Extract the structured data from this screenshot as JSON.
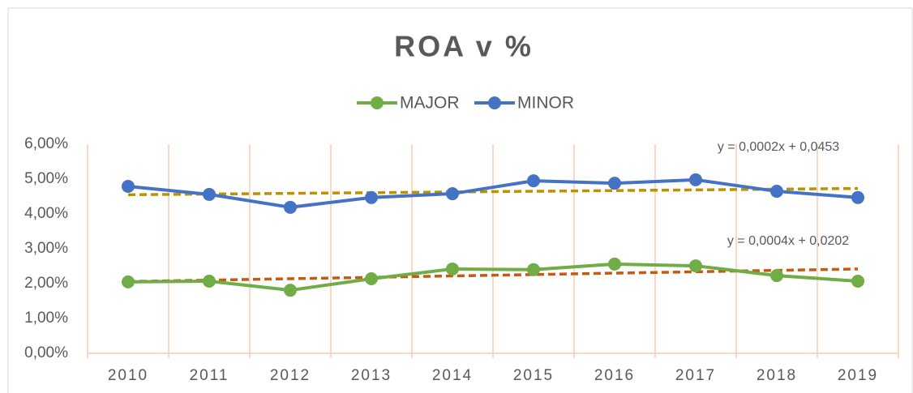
{
  "chart_data": {
    "type": "line",
    "title": "ROA v %",
    "categories": [
      "2010",
      "2011",
      "2012",
      "2013",
      "2014",
      "2015",
      "2016",
      "2017",
      "2018",
      "2019"
    ],
    "series": [
      {
        "name": "MAJOR",
        "color": "#70ad47",
        "values": [
          2.05,
          2.07,
          1.81,
          2.14,
          2.42,
          2.4,
          2.56,
          2.51,
          2.23,
          2.07
        ]
      },
      {
        "name": "MINOR",
        "color": "#4472c4",
        "values": [
          4.79,
          4.56,
          4.19,
          4.47,
          4.58,
          4.95,
          4.88,
          4.98,
          4.65,
          4.47
        ]
      }
    ],
    "trendlines": [
      {
        "equation": "y = 0,0002x + 0,0453",
        "color": "#bf9000",
        "values": [
          4.55,
          4.73
        ]
      },
      {
        "equation": "y = 0,0004x + 0,0202",
        "color": "#c55a11",
        "values": [
          2.06,
          2.42
        ]
      }
    ],
    "ylim": [
      0,
      6
    ],
    "yticks": [
      {
        "value": 0,
        "label": "0,00%"
      },
      {
        "value": 1,
        "label": "1,00%"
      },
      {
        "value": 2,
        "label": "2,00%"
      },
      {
        "value": 3,
        "label": "3,00%"
      },
      {
        "value": 4,
        "label": "4,00%"
      },
      {
        "value": 5,
        "label": "5,00%"
      },
      {
        "value": 6,
        "label": "6,00%"
      }
    ],
    "legend": "top"
  }
}
